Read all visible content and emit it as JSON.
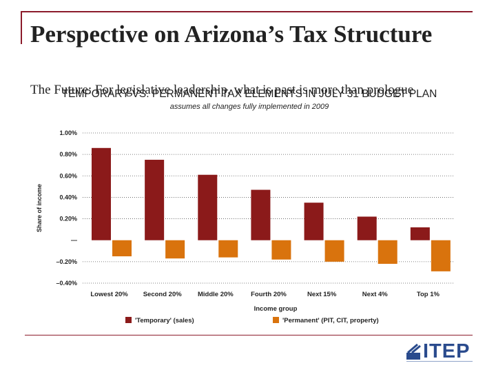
{
  "slide": {
    "title": "Perspective on Arizona’s Tax Structure",
    "subtitle": "The Future: For legislative leadership, what is past is more than prologue"
  },
  "logo": {
    "text": "ITEP"
  },
  "colors": {
    "temporary": "#8b1a1a",
    "permanent": "#d9730d",
    "frame": "#8b1a2a"
  },
  "chart_data": {
    "type": "bar",
    "title": "TEMPORARY VS. PERMANENT TAX ELEMENTS IN JULY 31 BUDGET PLAN",
    "subtitle": "assumes all changes fully implemented in 2009",
    "xlabel": "Income group",
    "ylabel": "Share of income",
    "categories": [
      "Lowest 20%",
      "Second 20%",
      "Middle 20%",
      "Fourth 20%",
      "Next 15%",
      "Next 4%",
      "Top 1%"
    ],
    "series": [
      {
        "name": "'Temporary' (sales)",
        "values": [
          0.86,
          0.75,
          0.61,
          0.47,
          0.35,
          0.22,
          0.12
        ]
      },
      {
        "name": "'Permanent' (PIT, CIT, property)",
        "values": [
          -0.15,
          -0.17,
          -0.16,
          -0.18,
          -0.2,
          -0.22,
          -0.29
        ]
      }
    ],
    "ylim": [
      -0.4,
      1.0
    ],
    "yticks": [
      1.0,
      0.8,
      0.6,
      0.4,
      0.2,
      0,
      -0.2,
      -0.4
    ],
    "ytick_labels": [
      "1.00%",
      "0.80%",
      "0.60%",
      "0.40%",
      "0.20%",
      "—",
      "–0.20%",
      "–0.40%"
    ],
    "grid": "horizontal dotted",
    "legend": "bottom"
  }
}
